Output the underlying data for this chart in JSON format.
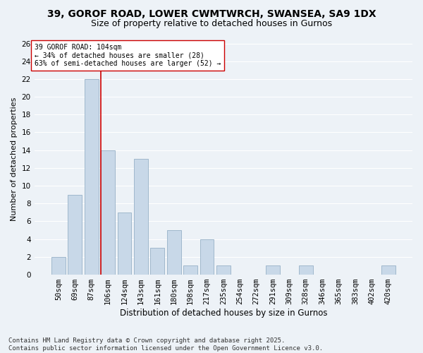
{
  "title1": "39, GOROF ROAD, LOWER CWMTWRCH, SWANSEA, SA9 1DX",
  "title2": "Size of property relative to detached houses in Gurnos",
  "xlabel": "Distribution of detached houses by size in Gurnos",
  "ylabel": "Number of detached properties",
  "categories": [
    "50sqm",
    "69sqm",
    "87sqm",
    "106sqm",
    "124sqm",
    "143sqm",
    "161sqm",
    "180sqm",
    "198sqm",
    "217sqm",
    "235sqm",
    "254sqm",
    "272sqm",
    "291sqm",
    "309sqm",
    "328sqm",
    "346sqm",
    "365sqm",
    "383sqm",
    "402sqm",
    "420sqm"
  ],
  "values": [
    2,
    9,
    22,
    14,
    7,
    13,
    3,
    5,
    1,
    4,
    1,
    0,
    0,
    1,
    0,
    1,
    0,
    0,
    0,
    0,
    1
  ],
  "bar_color": "#c8d8e8",
  "bar_edge_color": "#a0b8cc",
  "vline_color": "#cc0000",
  "vline_x_index": 2.55,
  "annotation_text": "39 GOROF ROAD: 104sqm\n← 34% of detached houses are smaller (28)\n63% of semi-detached houses are larger (52) →",
  "annotation_box_color": "#ffffff",
  "annotation_box_edge": "#cc0000",
  "ylim": [
    0,
    26
  ],
  "yticks": [
    0,
    2,
    4,
    6,
    8,
    10,
    12,
    14,
    16,
    18,
    20,
    22,
    24,
    26
  ],
  "background_color": "#edf2f7",
  "grid_color": "#ffffff",
  "footer": "Contains HM Land Registry data © Crown copyright and database right 2025.\nContains public sector information licensed under the Open Government Licence v3.0.",
  "title1_fontsize": 10,
  "title2_fontsize": 9,
  "xlabel_fontsize": 8.5,
  "ylabel_fontsize": 8,
  "tick_fontsize": 7.5,
  "annot_fontsize": 7,
  "footer_fontsize": 6.5
}
